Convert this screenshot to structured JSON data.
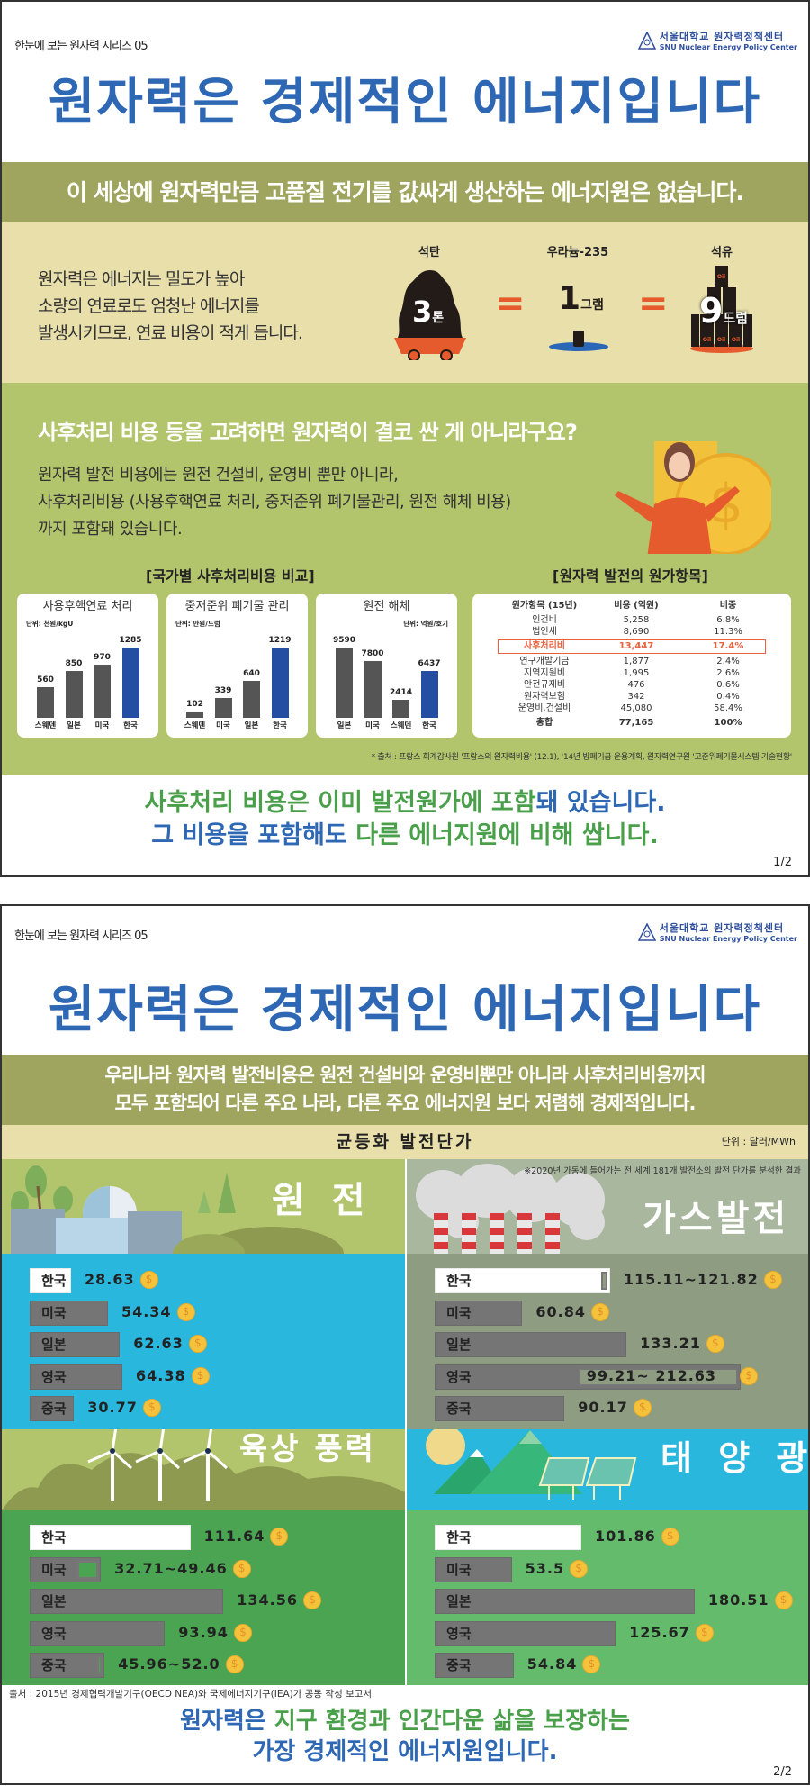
{
  "series_label": "한눈에 보는 원자력 시리즈 05",
  "logo": {
    "korean": "서울대학교 원자력정책센터",
    "english": "SNU Nuclear Energy Policy Center"
  },
  "title": "원자력은 경제적인 에너지입니다",
  "page1": {
    "banner": "이 세상에 원자력만큼 고품질 전기를 값싸게 생산하는 에너지원은 없습니다.",
    "density_text": [
      "원자력은 에너지는 밀도가 높아",
      "소량의 연료로도 엄청난 에너지를",
      "발생시키므로, 연료 비용이 적게 듭니다."
    ],
    "fuel_compare": {
      "coal": {
        "label": "석탄",
        "amount": "3",
        "unit": "톤"
      },
      "equals": "=",
      "uranium": {
        "label": "우라늄-235",
        "amount": "1",
        "unit": "그램"
      },
      "oil": {
        "label": "석유",
        "amount": "9",
        "unit": "드럼",
        "barrel_text": "Oil"
      }
    },
    "question": "사후처리 비용 등을 고려하면 원자력이 결코 싼 게 아니라구요?",
    "answer_text": [
      "원자력 발전 비용에는 원전 건설비, 운영비 뿐만 아니라,",
      "사후처리비용 (사용후핵연료 처리, 중저준위 폐기물관리, 원전 해체 비용)",
      "까지 포함돼 있습니다."
    ],
    "charts_heading": "[국가별 사후처리비용 비교]",
    "table_heading": "[원자력 발전의 원가항목]",
    "source": "* 출처 : 프랑스 회계감사원 '프랑스의 원자력비용' (12.1), '14년 방폐기금 운용계획, 원자력연구원 '고준위폐기물시스템 기술현황'",
    "conclusion": {
      "line1": [
        {
          "t": "사후처리 비용은 이미 발전원가에 포함",
          "c": "green"
        },
        {
          "t": "돼 있습니다.",
          "c": "blue"
        }
      ],
      "line2": [
        {
          "t": "그 비용을 포함해도 ",
          "c": "blue"
        },
        {
          "t": "다른 에너지원에 비해 쌉니다.",
          "c": "green"
        }
      ]
    },
    "page_number": "1/2"
  },
  "chart_data": [
    {
      "type": "bar",
      "title": "사용후핵연료 처리",
      "unit": "단위: 천원/kgU",
      "categories": [
        "스웨덴",
        "일본",
        "미국",
        "한국"
      ],
      "values": [
        560,
        850,
        970,
        1285
      ],
      "highlight": "한국"
    },
    {
      "type": "bar",
      "title": "중저준위 폐기물 관리",
      "unit": "단위: 만원/드럼",
      "categories": [
        "스웨덴",
        "미국",
        "일본",
        "한국"
      ],
      "values": [
        102,
        339,
        640,
        1219
      ],
      "highlight": "한국"
    },
    {
      "type": "bar",
      "title": "원전 해체",
      "unit": "단위: 억원/호기",
      "categories": [
        "일본",
        "미국",
        "스웨덴",
        "한국"
      ],
      "values": [
        9590,
        7800,
        2414,
        6437
      ],
      "highlight": "한국"
    },
    {
      "type": "table",
      "columns": [
        "원가항목 (15년)",
        "비용 (억원)",
        "비중"
      ],
      "rows": [
        [
          "인건비",
          "5,258",
          "6.8%"
        ],
        [
          "법인세",
          "8,690",
          "11.3%"
        ],
        [
          "사후처리비",
          "13,447",
          "17.4%"
        ],
        [
          "연구개발기금",
          "1,877",
          "2.4%"
        ],
        [
          "지역지원비",
          "1,995",
          "2.6%"
        ],
        [
          "안전규제비",
          "476",
          "0.6%"
        ],
        [
          "원자력보험",
          "342",
          "0.4%"
        ],
        [
          "운영비,건설비",
          "45,080",
          "58.4%"
        ]
      ],
      "highlighted_row": "사후처리비",
      "total": [
        "총합",
        "77,165",
        "100%"
      ]
    },
    {
      "type": "bar",
      "title": "균등화 발전단가",
      "unit": "단위 : 달러/MWh",
      "note": "※2020년 가동에 들어가는 전 세계 181개 발전소의 발전 단가를 분석한 결과",
      "panels": [
        {
          "name": "원 전",
          "rows": [
            {
              "country": "한국",
              "label": "28.63",
              "max": 28.63
            },
            {
              "country": "미국",
              "label": "54.34",
              "max": 54.34
            },
            {
              "country": "일본",
              "label": "62.63",
              "max": 62.63
            },
            {
              "country": "영국",
              "label": "64.38",
              "max": 64.38
            },
            {
              "country": "중국",
              "label": "30.77",
              "max": 30.77
            }
          ]
        },
        {
          "name": "가스발전",
          "rows": [
            {
              "country": "한국",
              "label": "115.11~121.82",
              "min": 115.11,
              "max": 121.82
            },
            {
              "country": "미국",
              "label": "60.84",
              "max": 60.84
            },
            {
              "country": "일본",
              "label": "133.21",
              "max": 133.21
            },
            {
              "country": "영국",
              "label": "99.21~ 212.63",
              "min": 99.21,
              "max": 212.63
            },
            {
              "country": "중국",
              "label": "90.17",
              "max": 90.17
            }
          ]
        },
        {
          "name": "육상 풍력",
          "rows": [
            {
              "country": "한국",
              "label": "111.64",
              "max": 111.64
            },
            {
              "country": "미국",
              "label": "32.71~49.46",
              "min": 32.71,
              "max": 49.46
            },
            {
              "country": "일본",
              "label": "134.56",
              "max": 134.56
            },
            {
              "country": "영국",
              "label": "93.94",
              "max": 93.94
            },
            {
              "country": "중국",
              "label": "45.96~52.0",
              "min": 45.96,
              "max": 52.0
            }
          ]
        },
        {
          "name": "태 양 광",
          "rows": [
            {
              "country": "한국",
              "label": "101.86",
              "max": 101.86
            },
            {
              "country": "미국",
              "label": "53.5",
              "max": 53.5
            },
            {
              "country": "일본",
              "label": "180.51",
              "max": 180.51
            },
            {
              "country": "영국",
              "label": "125.67",
              "max": 125.67
            },
            {
              "country": "중국",
              "label": "54.84",
              "max": 54.84
            }
          ]
        }
      ]
    }
  ],
  "page2": {
    "banner": [
      "우리나라 원자력 발전비용은 원전 건설비와 운영비뿐만 아니라 사후처리비용까지",
      "모두 포함되어 다른 주요 나라, 다른 주요 에너지원 보다 저렴해 경제적입니다."
    ],
    "source": "출처 : 2015년 경제협력개발기구(OECD NEA)와 국제에너지기구(IEA)가 공동 작성 보고서",
    "conclusion": {
      "line1": [
        {
          "t": "원자력은 ",
          "c": "blue"
        },
        {
          "t": "지구 환경과 인간다운 삶을 보장하는",
          "c": "green"
        }
      ],
      "line2": [
        {
          "t": "가장 경제적인 에너지원입니다.",
          "c": "blue"
        }
      ]
    },
    "page_number": "2/2"
  },
  "colors": {
    "title_blue": "#2e67b4",
    "green": "#4aa04a",
    "korea_bar": "#234ea1",
    "other_bar": "#555555",
    "highlight": "#e8603c",
    "coin": "#f5c33b"
  },
  "icons": [
    "coal-cart-icon",
    "uranium-pellet-icon",
    "oil-barrels-icon",
    "woman-presenting-icon",
    "coin-icon",
    "nuclear-plant-icon",
    "smokestack-icon",
    "wind-turbine-icon",
    "solar-panel-icon"
  ]
}
